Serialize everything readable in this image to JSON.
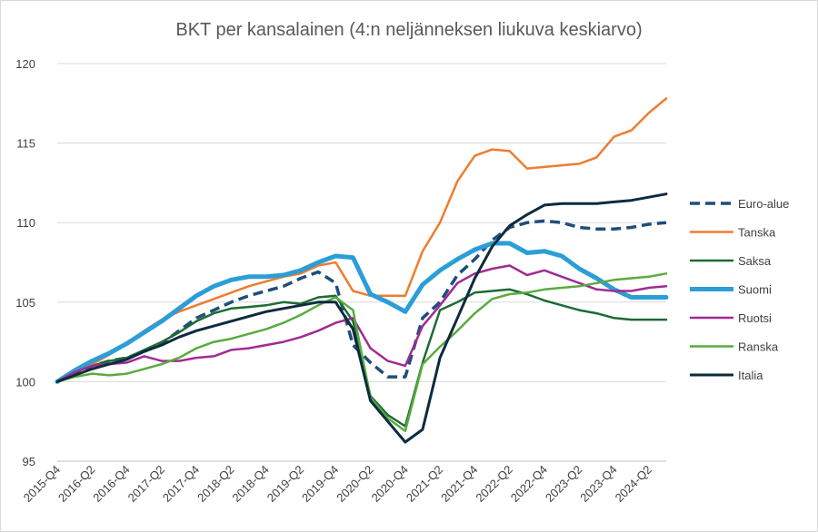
{
  "chart_data": {
    "type": "line",
    "title": "BKT per kansalainen (4:n neljänneksen liukuva keskiarvo)",
    "xlabel": "",
    "ylabel": "",
    "ylim": [
      95,
      120
    ],
    "yticks": [
      95,
      100,
      105,
      110,
      115,
      120
    ],
    "grid": true,
    "legend": "right",
    "categories": [
      "2015-Q4",
      "2016-Q1",
      "2016-Q2",
      "2016-Q3",
      "2016-Q4",
      "2017-Q1",
      "2017-Q2",
      "2017-Q3",
      "2017-Q4",
      "2018-Q1",
      "2018-Q2",
      "2018-Q3",
      "2018-Q4",
      "2019-Q1",
      "2019-Q2",
      "2019-Q3",
      "2019-Q4",
      "2020-Q1",
      "2020-Q2",
      "2020-Q3",
      "2020-Q4",
      "2021-Q1",
      "2021-Q2",
      "2021-Q3",
      "2021-Q4",
      "2022-Q1",
      "2022-Q2",
      "2022-Q3",
      "2022-Q4",
      "2023-Q1",
      "2023-Q2",
      "2023-Q3",
      "2023-Q4",
      "2024-Q1",
      "2024-Q2",
      "2024-Q3"
    ],
    "tick_labels": [
      "2015-Q4",
      "2016-Q2",
      "2016-Q4",
      "2017-Q2",
      "2017-Q4",
      "2018-Q2",
      "2018-Q4",
      "2019-Q2",
      "2019-Q4",
      "2020-Q2",
      "2020-Q4",
      "2021-Q2",
      "2021-Q4",
      "2022-Q2",
      "2022-Q4",
      "2023-Q2",
      "2023-Q4",
      "2024-Q2"
    ],
    "series": [
      {
        "name": "Euro-alue",
        "color": "#1f4e79",
        "dashed": true,
        "width": 3.5,
        "values": [
          100.0,
          100.5,
          101.0,
          101.3,
          101.5,
          101.9,
          102.4,
          103.2,
          104.0,
          104.5,
          105.0,
          105.4,
          105.7,
          106.0,
          106.5,
          106.9,
          106.2,
          102.3,
          101.2,
          100.3,
          100.3,
          104.0,
          105.0,
          106.7,
          107.7,
          108.9,
          109.7,
          110.0,
          110.1,
          110.0,
          109.7,
          109.6,
          109.6,
          109.7,
          109.9,
          110.0
        ]
      },
      {
        "name": "Tanska",
        "color": "#ed7d31",
        "dashed": false,
        "width": 2.5,
        "values": [
          100.0,
          100.6,
          101.1,
          101.7,
          102.4,
          103.2,
          103.9,
          104.4,
          104.8,
          105.2,
          105.6,
          106.0,
          106.3,
          106.6,
          106.8,
          107.3,
          107.5,
          105.7,
          105.4,
          105.4,
          105.4,
          108.2,
          110.0,
          112.6,
          114.2,
          114.6,
          114.5,
          113.4,
          113.5,
          113.6,
          113.7,
          114.1,
          115.4,
          115.8,
          116.9,
          117.8
        ]
      },
      {
        "name": "Saksa",
        "color": "#1e6b34",
        "dashed": false,
        "width": 2.5,
        "values": [
          100.0,
          100.6,
          101.0,
          101.3,
          101.5,
          102.0,
          102.5,
          103.1,
          103.8,
          104.3,
          104.6,
          104.7,
          104.8,
          105.0,
          104.9,
          105.3,
          105.4,
          103.8,
          99.1,
          97.9,
          97.2,
          101.2,
          104.5,
          105.0,
          105.6,
          105.7,
          105.8,
          105.5,
          105.1,
          104.8,
          104.5,
          104.3,
          104.0,
          103.9,
          103.9,
          103.9
        ]
      },
      {
        "name": "Suomi",
        "color": "#2b9ed8",
        "dashed": false,
        "width": 5,
        "values": [
          100.0,
          100.7,
          101.3,
          101.8,
          102.4,
          103.1,
          103.8,
          104.6,
          105.4,
          106.0,
          106.4,
          106.6,
          106.6,
          106.7,
          107.0,
          107.5,
          107.9,
          107.8,
          105.5,
          105.0,
          104.4,
          106.1,
          107.0,
          107.7,
          108.3,
          108.7,
          108.7,
          108.1,
          108.2,
          107.9,
          107.1,
          106.5,
          105.8,
          105.3,
          105.3,
          105.3
        ]
      },
      {
        "name": "Ruotsi",
        "color": "#a02b93",
        "dashed": false,
        "width": 2.5,
        "values": [
          100.0,
          100.6,
          101.0,
          101.1,
          101.2,
          101.6,
          101.3,
          101.3,
          101.5,
          101.6,
          102.0,
          102.1,
          102.3,
          102.5,
          102.8,
          103.2,
          103.7,
          104.0,
          102.1,
          101.3,
          101.0,
          103.5,
          104.8,
          106.2,
          106.8,
          107.1,
          107.3,
          106.7,
          107.0,
          106.6,
          106.2,
          105.8,
          105.7,
          105.7,
          105.9,
          106.0
        ]
      },
      {
        "name": "Ranska",
        "color": "#5aab3f",
        "dashed": false,
        "width": 2.5,
        "values": [
          100.0,
          100.3,
          100.5,
          100.4,
          100.5,
          100.8,
          101.1,
          101.5,
          102.1,
          102.5,
          102.7,
          103.0,
          103.3,
          103.7,
          104.2,
          104.8,
          105.3,
          104.5,
          99.0,
          97.7,
          96.9,
          101.1,
          102.2,
          103.2,
          104.3,
          105.2,
          105.5,
          105.6,
          105.8,
          105.9,
          106.0,
          106.2,
          106.4,
          106.5,
          106.6,
          106.8
        ]
      },
      {
        "name": "Italia",
        "color": "#0d2b3e",
        "dashed": false,
        "width": 3,
        "values": [
          100.0,
          100.4,
          100.8,
          101.1,
          101.4,
          101.9,
          102.3,
          102.8,
          103.2,
          103.5,
          103.8,
          104.1,
          104.4,
          104.6,
          104.8,
          105.0,
          105.0,
          103.3,
          98.8,
          97.5,
          96.2,
          97.0,
          101.5,
          104.0,
          106.5,
          108.5,
          109.8,
          110.5,
          111.1,
          111.2,
          111.2,
          111.2,
          111.3,
          111.4,
          111.6,
          111.8
        ]
      }
    ]
  }
}
